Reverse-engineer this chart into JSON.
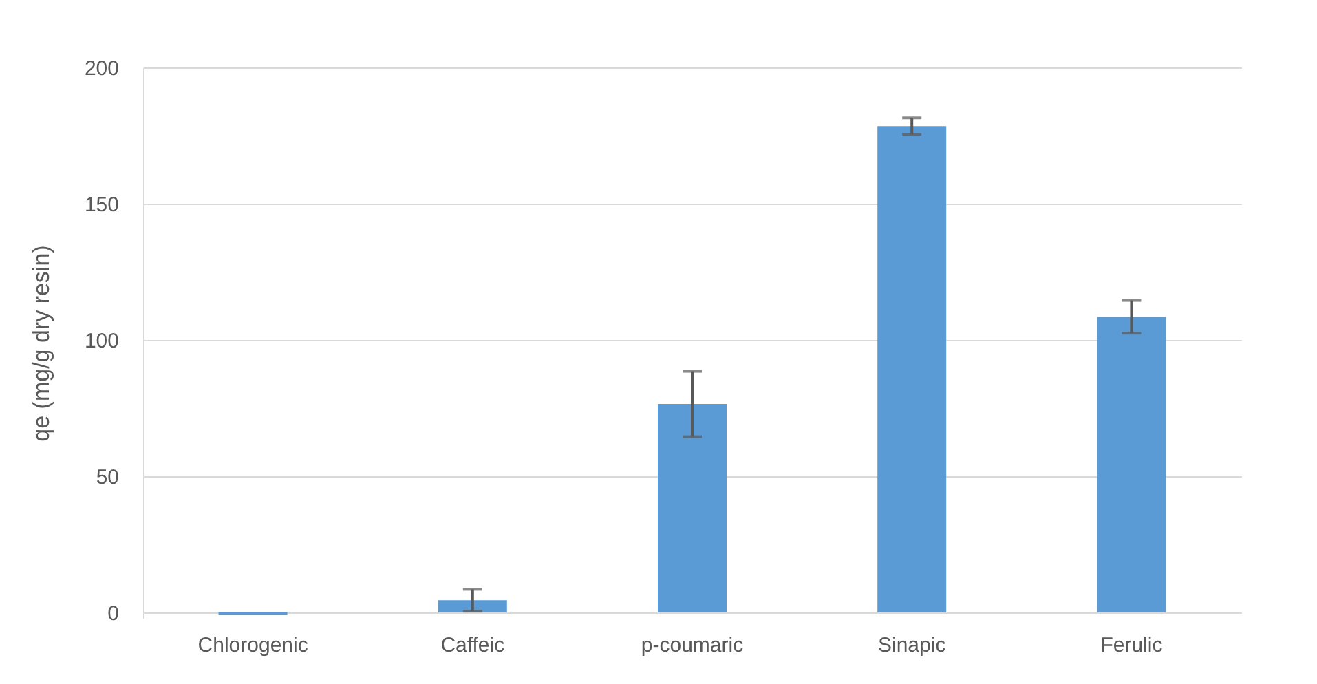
{
  "chart_data": {
    "type": "bar",
    "ylabel": "qe (mg/g dry resin)",
    "categories": [
      "Chlorogenic",
      "Caffeic",
      "p-coumaric",
      "Sinapic",
      "Ferulic"
    ],
    "values": [
      -1,
      4.5,
      76.5,
      178.5,
      108.5
    ],
    "errors": [
      null,
      4,
      12,
      3,
      6
    ],
    "color": "#5b9bd5",
    "ylim": [
      -2,
      200
    ],
    "yticks": [
      0,
      50,
      100,
      150,
      200
    ],
    "grid": "y"
  }
}
